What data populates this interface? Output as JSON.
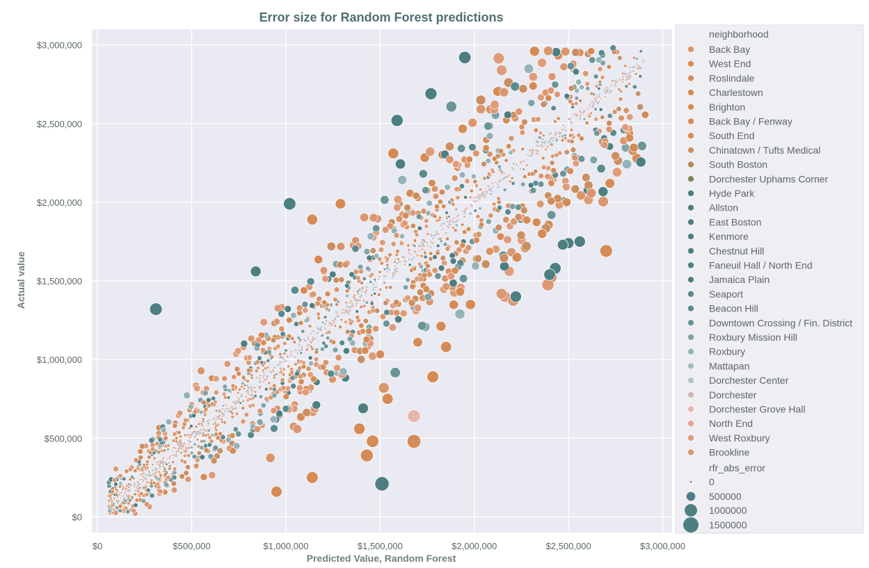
{
  "chart_data": {
    "type": "scatter",
    "title": "Error size for Random Forest predictions",
    "xlabel": "Predicted Value, Random Forest",
    "ylabel": "Actual value",
    "xlim": [
      -30000,
      3050000
    ],
    "ylim": [
      -100000,
      3100000
    ],
    "xticks": [
      {
        "value": 0,
        "label": "$0"
      },
      {
        "value": 500000,
        "label": "$500,000"
      },
      {
        "value": 1000000,
        "label": "$1,000,000"
      },
      {
        "value": 1500000,
        "label": "$1,500,000"
      },
      {
        "value": 2000000,
        "label": "$2,000,000"
      },
      {
        "value": 2500000,
        "label": "$2,500,000"
      },
      {
        "value": 3000000,
        "label": "$3,000,000"
      }
    ],
    "yticks": [
      {
        "value": 0,
        "label": "$0"
      },
      {
        "value": 500000,
        "label": "$500,000"
      },
      {
        "value": 1000000,
        "label": "$1,000,000"
      },
      {
        "value": 1500000,
        "label": "$1,500,000"
      },
      {
        "value": 2000000,
        "label": "$2,000,000"
      },
      {
        "value": 2500000,
        "label": "$2,500,000"
      },
      {
        "value": 3000000,
        "label": "$3,000,000"
      }
    ],
    "grid": true,
    "hue": "neighborhood",
    "size": "rfr_abs_error",
    "legend_position": "outside-right",
    "neighborhoods": [
      {
        "name": "Back Bay",
        "color": "#d9956a"
      },
      {
        "name": "West End",
        "color": "#d58b55"
      },
      {
        "name": "Roslindale",
        "color": "#d58b55"
      },
      {
        "name": "Charlestown",
        "color": "#d58b55"
      },
      {
        "name": "Brighton",
        "color": "#d58b55"
      },
      {
        "name": "Back Bay / Fenway",
        "color": "#d58b55"
      },
      {
        "name": "South End",
        "color": "#d58b55"
      },
      {
        "name": "Chinatown / Tufts Medical",
        "color": "#c98f63"
      },
      {
        "name": "South Boston",
        "color": "#b58a63"
      },
      {
        "name": "Dorchester Uphams Corner",
        "color": "#7a8060"
      },
      {
        "name": "Hyde Park",
        "color": "#4d7f82"
      },
      {
        "name": "Allston",
        "color": "#4d7f82"
      },
      {
        "name": "East Boston",
        "color": "#4d7f82"
      },
      {
        "name": "Kenmore",
        "color": "#4d7f82"
      },
      {
        "name": "Chestnut Hill",
        "color": "#4d7f82"
      },
      {
        "name": "Faneuil Hall / North End",
        "color": "#4d7f82"
      },
      {
        "name": "Jamaica Plain",
        "color": "#4d7f82"
      },
      {
        "name": "Seaport",
        "color": "#5a8a8d"
      },
      {
        "name": "Beacon Hill",
        "color": "#5a8a8d"
      },
      {
        "name": "Downtown Crossing / Fin. District",
        "color": "#6b9497"
      },
      {
        "name": "Roxbury Mission Hill",
        "color": "#7ea4aa"
      },
      {
        "name": "Roxbury",
        "color": "#93b3b8"
      },
      {
        "name": "Mattapan",
        "color": "#a3bcc0"
      },
      {
        "name": "Dorchester Center",
        "color": "#b4c3c6"
      },
      {
        "name": "Dorchester",
        "color": "#d4b3b3"
      },
      {
        "name": "Dorchester Grove Hall",
        "color": "#e7b5ad"
      },
      {
        "name": "North End",
        "color": "#e3a58e"
      },
      {
        "name": "West Roxbury",
        "color": "#df9c7b"
      },
      {
        "name": "Brookline",
        "color": "#db9772"
      }
    ],
    "size_legend": {
      "title": "rfr_abs_error",
      "entries": [
        {
          "label": "0",
          "value": 0
        },
        {
          "label": "500000",
          "value": 500000
        },
        {
          "label": "1000000",
          "value": 1000000
        },
        {
          "label": "1500000",
          "value": 1500000
        }
      ]
    },
    "outlier_points": [
      {
        "x": 310000,
        "y": 1320000,
        "group": "teal"
      },
      {
        "x": 1020000,
        "y": 1990000,
        "group": "teal"
      },
      {
        "x": 1950000,
        "y": 2920000,
        "group": "teal"
      },
      {
        "x": 1770000,
        "y": 2690000,
        "group": "teal"
      },
      {
        "x": 1590000,
        "y": 2520000,
        "group": "teal"
      },
      {
        "x": 1510000,
        "y": 210000,
        "group": "teal"
      },
      {
        "x": 2220000,
        "y": 1400000,
        "group": "teal"
      },
      {
        "x": 2430000,
        "y": 1580000,
        "group": "teal"
      },
      {
        "x": 2400000,
        "y": 1540000,
        "group": "teal"
      },
      {
        "x": 2500000,
        "y": 1740000,
        "group": "teal"
      },
      {
        "x": 2560000,
        "y": 1750000,
        "group": "teal"
      },
      {
        "x": 2470000,
        "y": 1730000,
        "group": "teal"
      },
      {
        "x": 840000,
        "y": 1560000,
        "group": "teal"
      },
      {
        "x": 1410000,
        "y": 690000,
        "group": "teal"
      },
      {
        "x": 1680000,
        "y": 480000,
        "group": "orange"
      },
      {
        "x": 1460000,
        "y": 480000,
        "group": "orange"
      },
      {
        "x": 1430000,
        "y": 390000,
        "group": "orange"
      },
      {
        "x": 1390000,
        "y": 560000,
        "group": "orange"
      },
      {
        "x": 1780000,
        "y": 890000,
        "group": "orange"
      },
      {
        "x": 2700000,
        "y": 1690000,
        "group": "orange"
      },
      {
        "x": 1680000,
        "y": 640000,
        "group": "pink"
      },
      {
        "x": 1540000,
        "y": 750000,
        "group": "orange"
      },
      {
        "x": 1140000,
        "y": 250000,
        "group": "orange"
      },
      {
        "x": 950000,
        "y": 160000,
        "group": "orange"
      },
      {
        "x": 1140000,
        "y": 1890000,
        "group": "orange"
      },
      {
        "x": 1290000,
        "y": 1990000,
        "group": "orange"
      },
      {
        "x": 2320000,
        "y": 2960000,
        "group": "orange"
      },
      {
        "x": 2620000,
        "y": 2960000,
        "group": "orange"
      },
      {
        "x": 1570000,
        "y": 2310000,
        "group": "orange"
      },
      {
        "x": 1700000,
        "y": 1110000,
        "group": "orange"
      },
      {
        "x": 1850000,
        "y": 1080000,
        "group": "orange"
      },
      {
        "x": 2720000,
        "y": 2120000,
        "group": "orange"
      },
      {
        "x": 2490000,
        "y": 2000000,
        "group": "orange"
      },
      {
        "x": 2360000,
        "y": 1800000,
        "group": "orange"
      },
      {
        "x": 2680000,
        "y": 2540000,
        "group": "orange"
      },
      {
        "x": 2540000,
        "y": 2830000,
        "group": "teal"
      }
    ]
  }
}
